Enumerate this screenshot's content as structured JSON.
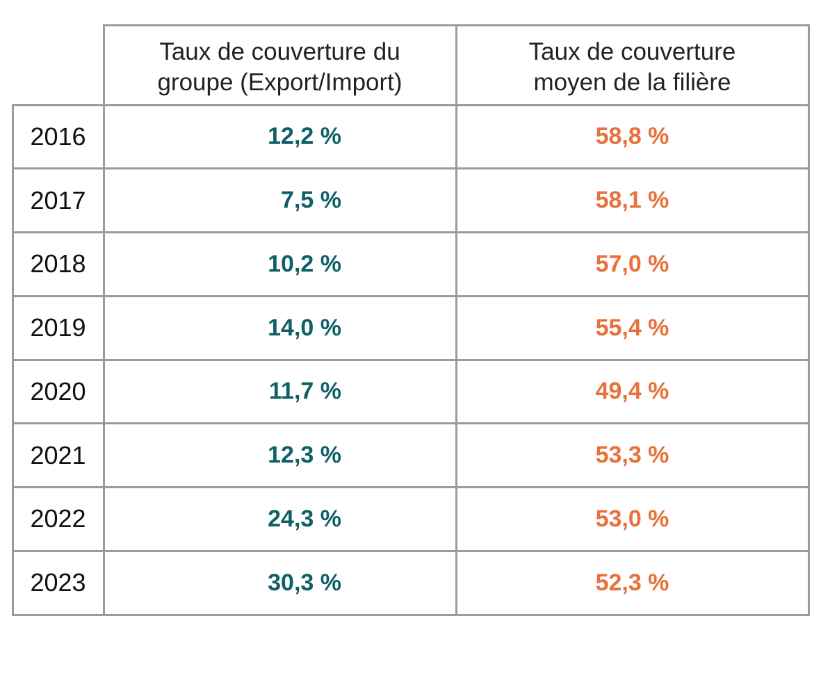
{
  "chart_data": {
    "type": "table",
    "columns": [
      "Taux de couverture du groupe (Export/Import)",
      "Taux de couverture moyen de la filière"
    ],
    "header_lines": [
      [
        "Taux de couverture du",
        "groupe (Export/Import)"
      ],
      [
        "Taux de couverture",
        "moyen de la filière"
      ]
    ],
    "rows": [
      {
        "year": "2016",
        "groupe": "12,2 %",
        "filiere": "58,8 %"
      },
      {
        "year": "2017",
        "groupe": "7,5 %",
        "filiere": "58,1 %"
      },
      {
        "year": "2018",
        "groupe": "10,2 %",
        "filiere": "57,0 %"
      },
      {
        "year": "2019",
        "groupe": "14,0 %",
        "filiere": "55,4 %"
      },
      {
        "year": "2020",
        "groupe": "11,7 %",
        "filiere": "49,4 %"
      },
      {
        "year": "2021",
        "groupe": "12,3 %",
        "filiere": "53,3 %"
      },
      {
        "year": "2022",
        "groupe": "24,3 %",
        "filiere": "53,0 %"
      },
      {
        "year": "2023",
        "groupe": "30,3 %",
        "filiere": "52,3 %"
      }
    ]
  },
  "colors": {
    "groupe": "#0f5f66",
    "filiere": "#e8703a",
    "border": "#9b9b9b",
    "text": "#222222"
  }
}
